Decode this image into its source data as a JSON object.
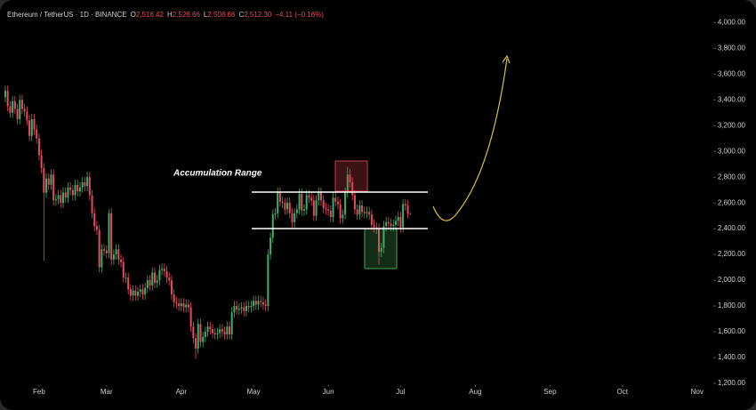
{
  "header": {
    "symbol": "Ethereum / TetherUS · 1D · BINANCE",
    "o_label": "O",
    "open": "2,516.42",
    "h_label": "H",
    "high": "2,526.66",
    "l_label": "L",
    "low": "2,508.66",
    "c_label": "C",
    "close": "2,512.30",
    "change": "−4.11 (−0.16%)"
  },
  "annotation": "Accumulation Range",
  "chart_data": {
    "type": "candlestick",
    "up_color": "#3bb06a",
    "down_color": "#e64a5f",
    "xlim": [
      -2.2,
      293
    ],
    "ylim": [
      1200,
      4140
    ],
    "xticks": [
      {
        "value": 14,
        "label": "Feb"
      },
      {
        "value": 42,
        "label": "Mar"
      },
      {
        "value": 73,
        "label": "Apr"
      },
      {
        "value": 103,
        "label": "May"
      },
      {
        "value": 134,
        "label": "Jun"
      },
      {
        "value": 164,
        "label": "Jul"
      },
      {
        "value": 195,
        "label": "Aug"
      },
      {
        "value": 226,
        "label": "Sep"
      },
      {
        "value": 256,
        "label": "Oct"
      },
      {
        "value": 287,
        "label": "Nov"
      }
    ],
    "yticks": [
      {
        "value": 1200,
        "label": "1,200.00"
      },
      {
        "value": 1400,
        "label": "1,400.00"
      },
      {
        "value": 1600,
        "label": "1,600.00"
      },
      {
        "value": 1800,
        "label": "1,800.00"
      },
      {
        "value": 2000,
        "label": "2,000.00"
      },
      {
        "value": 2200,
        "label": "2,200.00"
      },
      {
        "value": 2400,
        "label": "2,400.00"
      },
      {
        "value": 2600,
        "label": "2,600.00"
      },
      {
        "value": 2800,
        "label": "2,800.00"
      },
      {
        "value": 3000,
        "label": "3,000.00"
      },
      {
        "value": 3200,
        "label": "3,200.00"
      },
      {
        "value": 3400,
        "label": "3,400.00"
      },
      {
        "value": 3600,
        "label": "3,600.00"
      },
      {
        "value": 3800,
        "label": "3,800.00"
      },
      {
        "value": 4000,
        "label": "4,000.00"
      }
    ],
    "ohlc": [
      [
        3420,
        3510,
        3380,
        3470
      ],
      [
        3470,
        3510,
        3310,
        3350
      ],
      [
        3350,
        3390,
        3260,
        3300
      ],
      [
        3300,
        3430,
        3260,
        3390
      ],
      [
        3390,
        3430,
        3290,
        3330
      ],
      [
        3330,
        3370,
        3210,
        3250
      ],
      [
        3250,
        3440,
        3210,
        3400
      ],
      [
        3400,
        3440,
        3290,
        3330
      ],
      [
        3330,
        3370,
        3270,
        3310
      ],
      [
        3310,
        3350,
        3200,
        3240
      ],
      [
        3240,
        3280,
        3080,
        3120
      ],
      [
        3120,
        3290,
        3080,
        3250
      ],
      [
        3250,
        3290,
        3130,
        3170
      ],
      [
        3170,
        3210,
        3060,
        3100
      ],
      [
        3100,
        3140,
        2930,
        2970
      ],
      [
        2970,
        3010,
        2830,
        2870
      ],
      [
        2870,
        2910,
        2150,
        2680
      ],
      [
        2680,
        2830,
        2640,
        2790
      ],
      [
        2790,
        2830,
        2700,
        2740
      ],
      [
        2740,
        2860,
        2700,
        2820
      ],
      [
        2820,
        2860,
        2580,
        2620
      ],
      [
        2620,
        2670,
        2580,
        2630
      ],
      [
        2630,
        2700,
        2590,
        2660
      ],
      [
        2660,
        2700,
        2560,
        2600
      ],
      [
        2600,
        2720,
        2560,
        2680
      ],
      [
        2680,
        2720,
        2600,
        2640
      ],
      [
        2640,
        2760,
        2600,
        2720
      ],
      [
        2720,
        2760,
        2660,
        2700
      ],
      [
        2700,
        2740,
        2620,
        2660
      ],
      [
        2660,
        2780,
        2620,
        2740
      ],
      [
        2740,
        2780,
        2650,
        2690
      ],
      [
        2690,
        2760,
        2650,
        2720
      ],
      [
        2720,
        2800,
        2680,
        2760
      ],
      [
        2760,
        2800,
        2690,
        2730
      ],
      [
        2730,
        2840,
        2690,
        2800
      ],
      [
        2800,
        2840,
        2620,
        2660
      ],
      [
        2660,
        2700,
        2480,
        2520
      ],
      [
        2520,
        2560,
        2380,
        2420
      ],
      [
        2420,
        2460,
        2350,
        2390
      ],
      [
        2390,
        2430,
        2060,
        2100
      ],
      [
        2100,
        2280,
        2060,
        2240
      ],
      [
        2240,
        2280,
        2190,
        2230
      ],
      [
        2230,
        2270,
        2170,
        2210
      ],
      [
        2210,
        2550,
        2170,
        2520
      ],
      [
        2520,
        2560,
        2120,
        2160
      ],
      [
        2160,
        2240,
        2120,
        2200
      ],
      [
        2200,
        2280,
        2160,
        2240
      ],
      [
        2240,
        2280,
        2120,
        2160
      ],
      [
        2160,
        2200,
        2100,
        2140
      ],
      [
        2140,
        2180,
        1980,
        2020
      ],
      [
        2020,
        2060,
        1980,
        2020
      ],
      [
        2020,
        2060,
        1890,
        1930
      ],
      [
        1930,
        1970,
        1840,
        1880
      ],
      [
        1880,
        1960,
        1840,
        1920
      ],
      [
        1920,
        1960,
        1840,
        1880
      ],
      [
        1880,
        1950,
        1840,
        1910
      ],
      [
        1910,
        1970,
        1870,
        1930
      ],
      [
        1930,
        1970,
        1850,
        1890
      ],
      [
        1890,
        1980,
        1850,
        1940
      ],
      [
        1940,
        2040,
        1900,
        2000
      ],
      [
        2000,
        2040,
        1920,
        1960
      ],
      [
        1960,
        2100,
        1920,
        2060
      ],
      [
        2060,
        2100,
        1940,
        1980
      ],
      [
        1980,
        2040,
        1940,
        2000
      ],
      [
        2000,
        2120,
        1960,
        2080
      ],
      [
        2080,
        2130,
        2040,
        2090
      ],
      [
        2090,
        2130,
        2030,
        2070
      ],
      [
        2070,
        2110,
        1980,
        2020
      ],
      [
        2020,
        2060,
        1960,
        2000
      ],
      [
        2000,
        2040,
        1850,
        1890
      ],
      [
        1890,
        1930,
        1790,
        1830
      ],
      [
        1830,
        1870,
        1780,
        1820
      ],
      [
        1820,
        1860,
        1760,
        1800
      ],
      [
        1800,
        1860,
        1760,
        1820
      ],
      [
        1820,
        1860,
        1750,
        1790
      ],
      [
        1790,
        1850,
        1750,
        1810
      ],
      [
        1810,
        1850,
        1750,
        1790
      ],
      [
        1790,
        1830,
        1600,
        1640
      ],
      [
        1640,
        1680,
        1510,
        1550
      ],
      [
        1550,
        1590,
        1390,
        1470
      ],
      [
        1470,
        1700,
        1430,
        1660
      ],
      [
        1660,
        1700,
        1480,
        1520
      ],
      [
        1520,
        1600,
        1480,
        1560
      ],
      [
        1560,
        1640,
        1520,
        1600
      ],
      [
        1600,
        1680,
        1560,
        1640
      ],
      [
        1640,
        1680,
        1580,
        1620
      ],
      [
        1620,
        1660,
        1550,
        1590
      ],
      [
        1590,
        1630,
        1540,
        1580
      ],
      [
        1580,
        1630,
        1540,
        1590
      ],
      [
        1590,
        1660,
        1550,
        1620
      ],
      [
        1620,
        1660,
        1560,
        1600
      ],
      [
        1600,
        1640,
        1540,
        1580
      ],
      [
        1580,
        1680,
        1540,
        1640
      ],
      [
        1640,
        1680,
        1540,
        1580
      ],
      [
        1580,
        1790,
        1540,
        1750
      ],
      [
        1750,
        1840,
        1710,
        1800
      ],
      [
        1800,
        1840,
        1730,
        1770
      ],
      [
        1770,
        1820,
        1730,
        1780
      ],
      [
        1780,
        1830,
        1740,
        1790
      ],
      [
        1790,
        1830,
        1720,
        1760
      ],
      [
        1760,
        1840,
        1720,
        1800
      ],
      [
        1800,
        1840,
        1750,
        1790
      ],
      [
        1790,
        1840,
        1750,
        1800
      ],
      [
        1800,
        1880,
        1760,
        1840
      ],
      [
        1840,
        1880,
        1770,
        1810
      ],
      [
        1810,
        1880,
        1770,
        1840
      ],
      [
        1840,
        1880,
        1790,
        1830
      ],
      [
        1830,
        1870,
        1770,
        1810
      ],
      [
        1810,
        1850,
        1760,
        1800
      ],
      [
        1800,
        2240,
        1760,
        2200
      ],
      [
        2200,
        2370,
        2160,
        2330
      ],
      [
        2330,
        2550,
        2290,
        2510
      ],
      [
        2510,
        2560,
        2470,
        2520
      ],
      [
        2520,
        2720,
        2480,
        2680
      ],
      [
        2680,
        2720,
        2570,
        2610
      ],
      [
        2610,
        2650,
        2560,
        2600
      ],
      [
        2600,
        2640,
        2510,
        2550
      ],
      [
        2550,
        2640,
        2510,
        2600
      ],
      [
        2600,
        2640,
        2480,
        2520
      ],
      [
        2520,
        2560,
        2410,
        2450
      ],
      [
        2450,
        2560,
        2410,
        2520
      ],
      [
        2520,
        2590,
        2480,
        2550
      ],
      [
        2550,
        2710,
        2510,
        2670
      ],
      [
        2670,
        2710,
        2500,
        2540
      ],
      [
        2540,
        2590,
        2500,
        2550
      ],
      [
        2550,
        2700,
        2510,
        2660
      ],
      [
        2660,
        2700,
        2600,
        2640
      ],
      [
        2640,
        2680,
        2580,
        2620
      ],
      [
        2620,
        2660,
        2460,
        2500
      ],
      [
        2500,
        2660,
        2460,
        2620
      ],
      [
        2620,
        2720,
        2580,
        2680
      ],
      [
        2680,
        2720,
        2580,
        2620
      ],
      [
        2620,
        2660,
        2520,
        2560
      ],
      [
        2560,
        2600,
        2510,
        2550
      ],
      [
        2550,
        2590,
        2500,
        2540
      ],
      [
        2540,
        2580,
        2450,
        2490
      ],
      [
        2490,
        2680,
        2450,
        2640
      ],
      [
        2640,
        2680,
        2570,
        2610
      ],
      [
        2610,
        2650,
        2550,
        2590
      ],
      [
        2590,
        2630,
        2440,
        2480
      ],
      [
        2480,
        2550,
        2440,
        2510
      ],
      [
        2510,
        2720,
        2470,
        2680
      ],
      [
        2680,
        2880,
        2640,
        2820
      ],
      [
        2820,
        2860,
        2720,
        2760
      ],
      [
        2760,
        2800,
        2620,
        2660
      ],
      [
        2660,
        2700,
        2510,
        2550
      ],
      [
        2550,
        2590,
        2470,
        2510
      ],
      [
        2510,
        2620,
        2470,
        2580
      ],
      [
        2580,
        2620,
        2490,
        2530
      ],
      [
        2530,
        2570,
        2480,
        2520
      ],
      [
        2520,
        2570,
        2480,
        2530
      ],
      [
        2530,
        2570,
        2470,
        2510
      ],
      [
        2510,
        2550,
        2390,
        2430
      ],
      [
        2430,
        2470,
        2370,
        2410
      ],
      [
        2410,
        2450,
        2360,
        2400
      ],
      [
        2400,
        2440,
        2120,
        2220
      ],
      [
        2220,
        2290,
        2180,
        2250
      ],
      [
        2250,
        2460,
        2210,
        2420
      ],
      [
        2420,
        2490,
        2380,
        2450
      ],
      [
        2450,
        2490,
        2400,
        2440
      ],
      [
        2440,
        2480,
        2380,
        2420
      ],
      [
        2420,
        2470,
        2380,
        2430
      ],
      [
        2430,
        2500,
        2390,
        2460
      ],
      [
        2460,
        2530,
        2420,
        2490
      ],
      [
        2490,
        2530,
        2370,
        2410
      ],
      [
        2410,
        2630,
        2370,
        2590
      ],
      [
        2590,
        2630,
        2540,
        2580
      ],
      [
        2580,
        2620,
        2480,
        2516.42
      ],
      [
        2516.42,
        2526.66,
        2508.66,
        2512.3
      ]
    ]
  }
}
